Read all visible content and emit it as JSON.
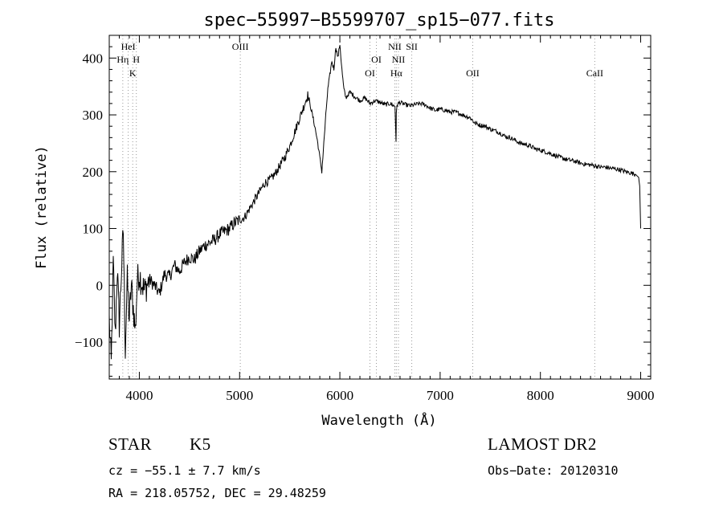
{
  "chart_data": {
    "type": "line",
    "title": "spec−55997−B5599707_sp15−077.fits",
    "xlabel": "Wavelength (Å)",
    "ylabel": "Flux (relative)",
    "xlim": [
      3700,
      9100
    ],
    "ylim": [
      -165,
      440
    ],
    "x_ticks": [
      4000,
      5000,
      6000,
      7000,
      8000,
      9000
    ],
    "y_ticks": [
      -100,
      0,
      100,
      200,
      300,
      400
    ],
    "grid": false,
    "legend": "none",
    "line_color": "#000000",
    "marker_line_color": "#999999",
    "series": [
      {
        "x": [
          3700,
          3720,
          3740,
          3760,
          3780,
          3800,
          3820,
          3840,
          3860,
          3880,
          3900,
          3920,
          3940,
          3960,
          3980,
          4000,
          4050,
          4100,
          4150,
          4200,
          4250,
          4300,
          4350,
          4400,
          4450,
          4500,
          4550,
          4600,
          4650,
          4700,
          4750,
          4800,
          4850,
          4900,
          4950,
          5000,
          5050,
          5100,
          5150,
          5200,
          5250,
          5300,
          5350,
          5400,
          5450,
          5500,
          5550,
          5600,
          5650,
          5680,
          5700,
          5720,
          5750,
          5780,
          5800,
          5820,
          5840,
          5860,
          5880,
          5900,
          5920,
          5940,
          5960,
          5980,
          6000,
          6020,
          6040,
          6060,
          6080,
          6100,
          6150,
          6200,
          6250,
          6300,
          6350,
          6400,
          6450,
          6500,
          6550,
          6560,
          6563,
          6570,
          6600,
          6650,
          6700,
          6750,
          6800,
          6850,
          6900,
          6950,
          7000,
          7050,
          7100,
          7150,
          7200,
          7250,
          7300,
          7350,
          7400,
          7450,
          7500,
          7550,
          7600,
          7650,
          7700,
          7750,
          7800,
          7850,
          7900,
          7950,
          8000,
          8050,
          8100,
          8150,
          8200,
          8250,
          8300,
          8350,
          8400,
          8450,
          8500,
          8550,
          8600,
          8650,
          8700,
          8750,
          8800,
          8850,
          8900,
          8950,
          8980,
          8990,
          9000
        ],
        "y": [
          -60,
          -140,
          40,
          -90,
          30,
          -70,
          20,
          95,
          -110,
          10,
          -60,
          0,
          -40,
          -80,
          10,
          20,
          -10,
          10,
          0,
          -15,
          20,
          15,
          35,
          25,
          40,
          50,
          45,
          60,
          70,
          75,
          80,
          90,
          95,
          100,
          110,
          115,
          120,
          135,
          150,
          165,
          180,
          185,
          195,
          210,
          225,
          245,
          270,
          295,
          320,
          335,
          320,
          305,
          280,
          250,
          225,
          200,
          250,
          300,
          345,
          370,
          395,
          380,
          420,
          400,
          425,
          380,
          345,
          330,
          335,
          340,
          332,
          325,
          330,
          320,
          325,
          322,
          318,
          320,
          315,
          255,
          300,
          318,
          322,
          318,
          316,
          318,
          320,
          318,
          312,
          308,
          310,
          308,
          305,
          305,
          302,
          298,
          295,
          285,
          282,
          280,
          275,
          272,
          268,
          262,
          260,
          255,
          250,
          248,
          245,
          240,
          238,
          235,
          232,
          228,
          225,
          222,
          220,
          218,
          215,
          213,
          212,
          210,
          208,
          208,
          206,
          205,
          203,
          200,
          198,
          195,
          190,
          175,
          100
        ]
      }
    ],
    "lines": [
      {
        "name": "HeI",
        "wavelength": 3889,
        "label_row": 1
      },
      {
        "name": "Hη",
        "wavelength": 3835,
        "label_row": 2
      },
      {
        "name": "H",
        "wavelength": 3970,
        "label_row": 2
      },
      {
        "name": "K",
        "wavelength": 3934,
        "label_row": 3
      },
      {
        "name": "OIII",
        "wavelength": 5007,
        "label_row": 1
      },
      {
        "name": "OI",
        "wavelength": 6300,
        "label_row": 3
      },
      {
        "name": "OI",
        "wavelength": 6364,
        "label_row": 2
      },
      {
        "name": "NII",
        "wavelength": 6548,
        "label_row": 1
      },
      {
        "name": "NII",
        "wavelength": 6584,
        "label_row": 2
      },
      {
        "name": "Hα",
        "wavelength": 6563,
        "label_row": 3
      },
      {
        "name": "SII",
        "wavelength": 6717,
        "label_row": 1
      },
      {
        "name": "OII",
        "wavelength": 7325,
        "label_row": 3
      },
      {
        "name": "CaII",
        "wavelength": 8542,
        "label_row": 3
      }
    ]
  },
  "info": {
    "object_type": "STAR",
    "subclass": "K5",
    "survey": "LAMOST DR2",
    "redshift": "cz = −55.1 ± 7.7 km/s",
    "obs_date": "Obs−Date: 20120310",
    "coords": "RA = 218.05752, DEC =  29.48259"
  }
}
